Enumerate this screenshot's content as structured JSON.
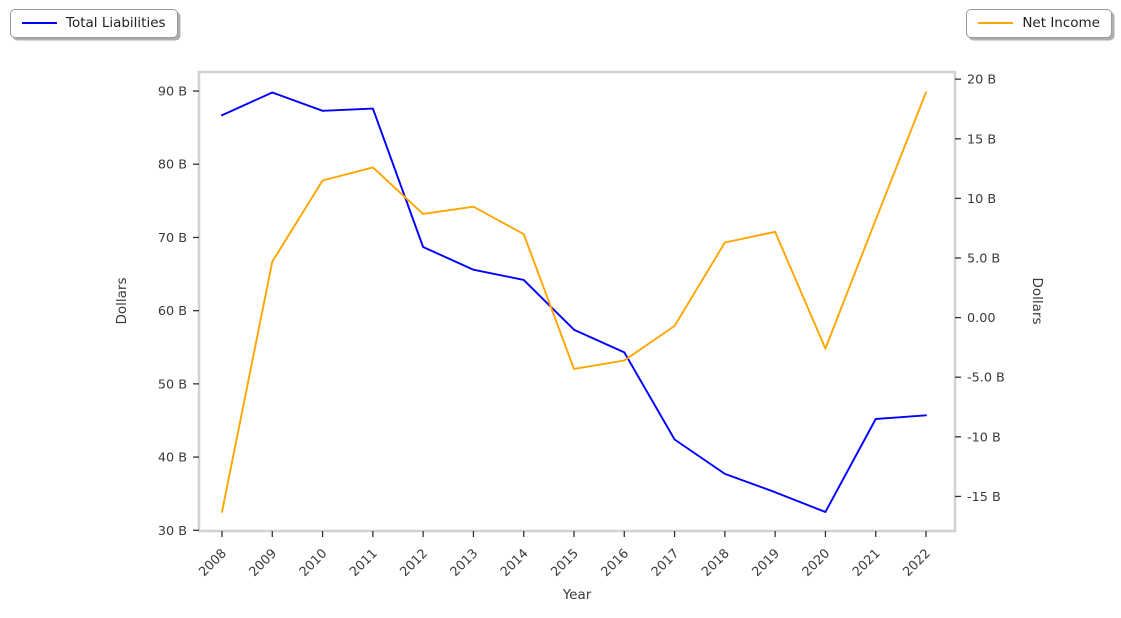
{
  "legend_left": {
    "label": "Total Liabilities",
    "color": "#0000ff"
  },
  "legend_right": {
    "label": "Net Income",
    "color": "#ffa500"
  },
  "axes": {
    "xlabel": "Year",
    "ylabel_left": "Dollars",
    "ylabel_right": "Dollars"
  },
  "chart_data": {
    "type": "line",
    "title": "",
    "xlabel": "Year",
    "grid": false,
    "legend_position": "outside top-left and top-right",
    "categories": [
      "2008",
      "2009",
      "2010",
      "2011",
      "2012",
      "2013",
      "2014",
      "2015",
      "2016",
      "2017",
      "2018",
      "2019",
      "2020",
      "2021",
      "2022"
    ],
    "series": [
      {
        "name": "Total Liabilities",
        "axis": "left",
        "color": "#0000ff",
        "values": [
          86.7,
          89.8,
          87.3,
          87.6,
          68.7,
          65.6,
          64.2,
          57.4,
          54.3,
          42.4,
          37.7,
          35.2,
          32.5,
          45.2,
          45.7
        ]
      },
      {
        "name": "Net Income",
        "axis": "right",
        "color": "#ffa500",
        "values": [
          -16.3,
          4.7,
          11.5,
          12.6,
          8.7,
          9.3,
          7.0,
          -4.3,
          -3.6,
          -0.7,
          6.3,
          7.2,
          -2.6,
          8.2,
          18.9
        ]
      }
    ],
    "left_axis": {
      "label": "Dollars",
      "unit": "B",
      "lim": [
        29.9,
        92.6
      ],
      "ticks": [
        {
          "v": 30,
          "label": "30 B"
        },
        {
          "v": 40,
          "label": "40 B"
        },
        {
          "v": 50,
          "label": "50 B"
        },
        {
          "v": 60,
          "label": "60 B"
        },
        {
          "v": 70,
          "label": "70 B"
        },
        {
          "v": 80,
          "label": "80 B"
        },
        {
          "v": 90,
          "label": "90 B"
        }
      ]
    },
    "right_axis": {
      "label": "Dollars",
      "unit": "B",
      "lim": [
        -17.9,
        20.6
      ],
      "ticks": [
        {
          "v": -15,
          "label": "-15 B"
        },
        {
          "v": -10,
          "label": "-10 B"
        },
        {
          "v": -5,
          "label": "-5.0 B"
        },
        {
          "v": 0,
          "label": "0.00"
        },
        {
          "v": 5,
          "label": "5.0 B"
        },
        {
          "v": 10,
          "label": "10 B"
        },
        {
          "v": 15,
          "label": "15 B"
        },
        {
          "v": 20,
          "label": "20 B"
        }
      ]
    }
  }
}
